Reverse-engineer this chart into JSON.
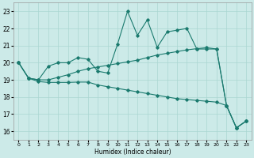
{
  "xlabel": "Humidex (Indice chaleur)",
  "background_color": "#cceae8",
  "grid_color": "#aad6d2",
  "line_color": "#1a7a6e",
  "x": [
    0,
    1,
    2,
    3,
    4,
    5,
    6,
    7,
    8,
    9,
    10,
    11,
    12,
    13,
    14,
    15,
    16,
    17,
    18,
    19,
    20,
    21,
    22,
    23
  ],
  "y_main": [
    20.0,
    19.1,
    19.0,
    19.8,
    20.0,
    20.0,
    20.3,
    20.2,
    19.5,
    19.4,
    21.1,
    23.0,
    21.6,
    22.5,
    20.9,
    21.8,
    21.9,
    22.0,
    20.8,
    20.8,
    20.8,
    17.5,
    16.2,
    16.6
  ],
  "y_upper": [
    20.0,
    19.1,
    19.0,
    19.0,
    19.15,
    19.3,
    19.5,
    19.65,
    19.75,
    19.85,
    19.95,
    20.05,
    20.15,
    20.3,
    20.45,
    20.55,
    20.65,
    20.75,
    20.82,
    20.88,
    20.8,
    17.5,
    16.2,
    16.6
  ],
  "y_lower": [
    20.0,
    19.1,
    18.9,
    18.85,
    18.85,
    18.85,
    18.87,
    18.87,
    18.7,
    18.6,
    18.5,
    18.4,
    18.3,
    18.2,
    18.1,
    18.0,
    17.9,
    17.85,
    17.8,
    17.75,
    17.7,
    17.5,
    16.2,
    16.6
  ],
  "ylim": [
    15.5,
    23.5
  ],
  "xlim": [
    -0.5,
    23.5
  ],
  "yticks": [
    16,
    17,
    18,
    19,
    20,
    21,
    22,
    23
  ],
  "xticks": [
    0,
    1,
    2,
    3,
    4,
    5,
    6,
    7,
    8,
    9,
    10,
    11,
    12,
    13,
    14,
    15,
    16,
    17,
    18,
    19,
    20,
    21,
    22,
    23
  ]
}
